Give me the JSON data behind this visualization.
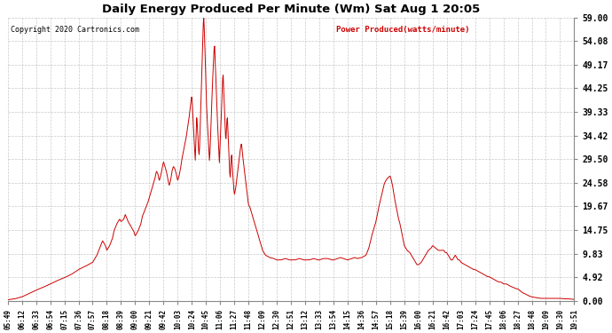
{
  "title": "Daily Energy Produced Per Minute (Wm) Sat Aug 1 20:05",
  "copyright": "Copyright 2020 Cartronics.com",
  "legend_label": "Power Produced(watts/minute)",
  "line_color": "#cc0000",
  "background_color": "#ffffff",
  "grid_color": "#bbbbbb",
  "ylim": [
    0,
    59.0
  ],
  "yticks": [
    0.0,
    4.92,
    9.83,
    14.75,
    19.67,
    24.58,
    29.5,
    34.42,
    39.33,
    44.25,
    49.17,
    54.08,
    59.0
  ],
  "xtick_labels": [
    "05:49",
    "06:12",
    "06:33",
    "06:54",
    "07:15",
    "07:36",
    "07:57",
    "08:18",
    "08:39",
    "09:00",
    "09:21",
    "09:42",
    "10:03",
    "10:24",
    "10:45",
    "11:06",
    "11:27",
    "11:48",
    "12:09",
    "12:30",
    "12:51",
    "13:12",
    "13:33",
    "13:54",
    "14:15",
    "14:36",
    "14:57",
    "15:18",
    "15:39",
    "16:00",
    "16:21",
    "16:42",
    "17:03",
    "17:24",
    "17:45",
    "18:06",
    "18:27",
    "18:48",
    "19:09",
    "19:30",
    "19:51"
  ]
}
